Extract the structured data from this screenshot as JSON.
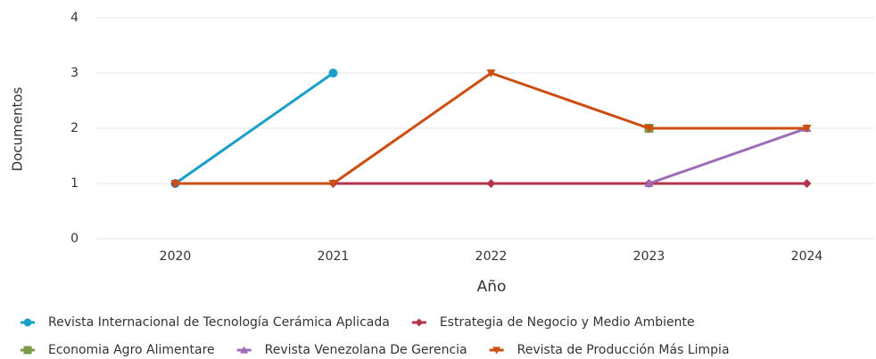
{
  "chart_data": {
    "type": "line",
    "x_label": "Año",
    "y_label": "Documentos",
    "categories": [
      "2020",
      "2021",
      "2022",
      "2023",
      "2024"
    ],
    "ylim": [
      0,
      4
    ],
    "yticks": [
      0,
      1,
      2,
      3,
      4
    ],
    "grid": true,
    "legend": "bottom",
    "series": [
      {
        "name": "Revista Internacional de Tecnología Cerámica Aplicada",
        "color": "#1a9fcb",
        "marker": "circle",
        "values": [
          1,
          3,
          null,
          null,
          null
        ]
      },
      {
        "name": "Estrategia de Negocio y Medio Ambiente",
        "color": "#b3344b",
        "marker": "diamond",
        "values": [
          1,
          1,
          1,
          1,
          1
        ]
      },
      {
        "name": "Economia Agro Alimentare",
        "color": "#7b9b4b",
        "marker": "square",
        "values": [
          null,
          null,
          null,
          2,
          null
        ]
      },
      {
        "name": "Revista Venezolana De Gerencia",
        "color": "#9c6cb6",
        "marker": "triangle-up",
        "values": [
          null,
          null,
          null,
          1,
          2
        ]
      },
      {
        "name": "Revista de Producción Más Limpia",
        "color": "#cc4e10",
        "marker": "triangle-down",
        "values": [
          1,
          1,
          3,
          2,
          2
        ]
      }
    ]
  }
}
